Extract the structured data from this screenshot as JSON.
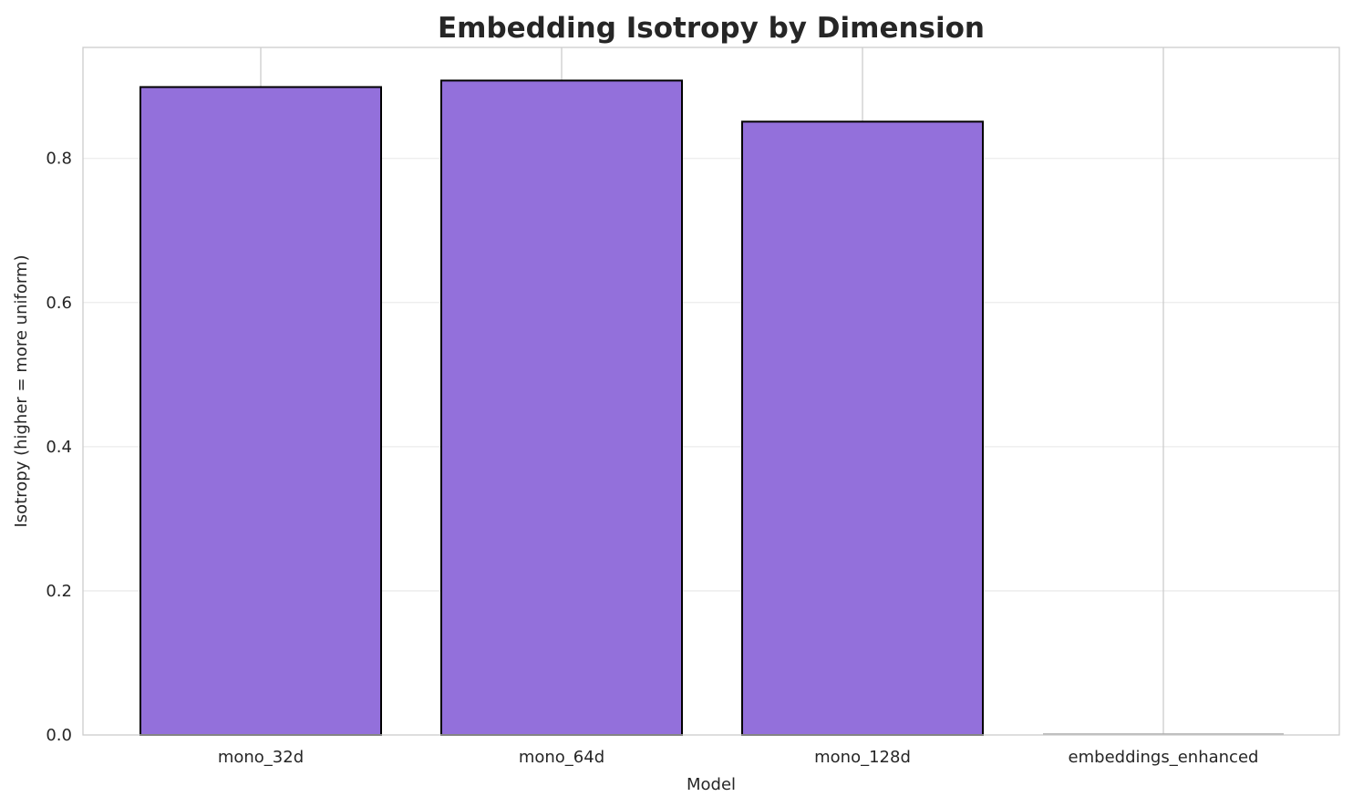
{
  "chart_data": {
    "type": "bar",
    "title": "Embedding Isotropy by Dimension",
    "xlabel": "Model",
    "ylabel": "Isotropy (higher = more uniform)",
    "categories": [
      "mono_32d",
      "mono_64d",
      "mono_128d",
      "embeddings_enhanced"
    ],
    "values": [
      0.899,
      0.908,
      0.851,
      0.0
    ],
    "ylim": [
      0,
      0.954
    ],
    "yticks": [
      0.0,
      0.2,
      0.4,
      0.6,
      0.8
    ],
    "ytick_labels": [
      "0.0",
      "0.2",
      "0.4",
      "0.6",
      "0.8"
    ],
    "grid": true,
    "colors": {
      "bar_fill": "#9370DB",
      "bar_edge": "#000000",
      "grid": "#ebebeb",
      "axes_edge": "#cccccc"
    }
  }
}
